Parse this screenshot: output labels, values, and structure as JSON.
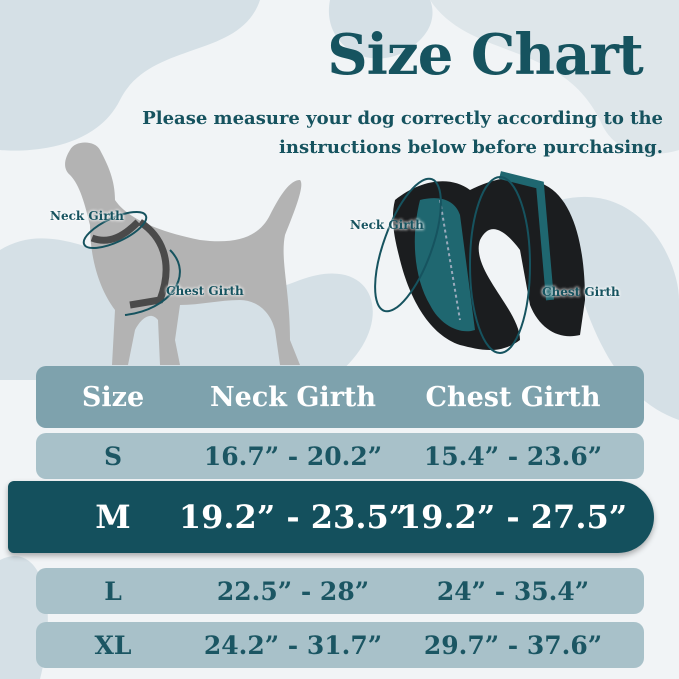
{
  "title": "Size Chart",
  "subtitle": [
    "Please measure your dog correctly according to the",
    "instructions below before purchasing."
  ],
  "labels": {
    "dog_neck": "Neck Girth",
    "dog_chest": "Chest Girth",
    "harness_neck": "Neck Girth",
    "harness_chest": "Chest Girth"
  },
  "table": {
    "headers": [
      "Size",
      "Neck Girth",
      "Chest Girth"
    ],
    "rows": [
      {
        "size": "S",
        "neck": "16.7” - 20.2”",
        "chest": "15.4” - 23.6”"
      },
      {
        "size": "M",
        "neck": "19.2” - 23.5”",
        "chest": "19.2” - 27.5”",
        "highlighted": true
      },
      {
        "size": "L",
        "neck": "22.5” - 28”",
        "chest": "24” - 35.4”"
      },
      {
        "size": "XL",
        "neck": "24.2” - 31.7”",
        "chest": "29.7” - 37.6”"
      }
    ]
  },
  "colors": {
    "brand": "#16535f",
    "highlight_row": "#14505d",
    "header_row": "#7ea2ad",
    "row": "#a8c1c9"
  }
}
